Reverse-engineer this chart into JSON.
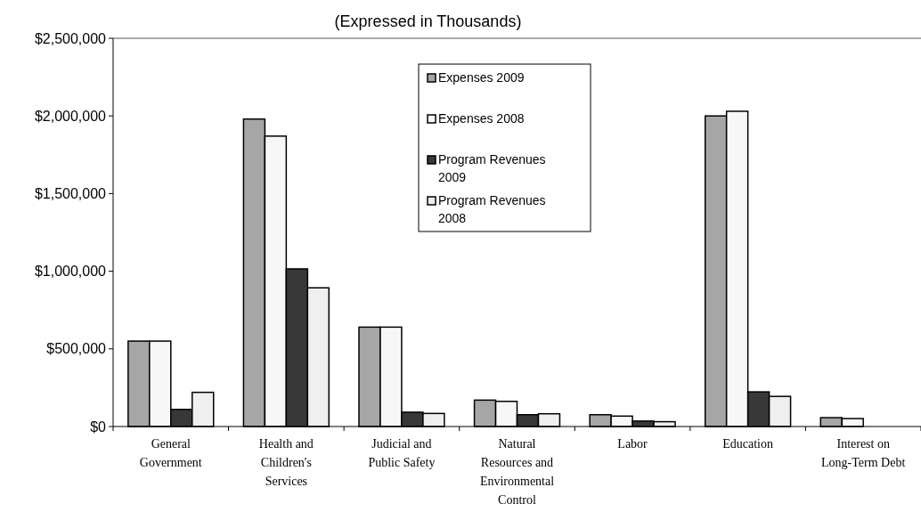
{
  "chart_data": {
    "type": "bar",
    "title": "(Expressed in Thousands)",
    "categories": [
      "General Government",
      "Health and Children's Services",
      "Judicial and Public Safety",
      "Natural Resources and Environmental Control",
      "Labor",
      "Education",
      "Interest on Long-Term Debt"
    ],
    "series": [
      {
        "name": "Expenses 2009",
        "color": "#a6a6a6",
        "values": [
          550000,
          1980000,
          640000,
          170000,
          76000,
          2000000,
          57000
        ]
      },
      {
        "name": "Expenses 2008",
        "color": "#f7f7f7",
        "values": [
          550000,
          1870000,
          640000,
          162000,
          67000,
          2030000,
          51000
        ]
      },
      {
        "name": "Program Revenues 2009",
        "color": "#383838",
        "values": [
          110000,
          1015000,
          92000,
          76000,
          35000,
          223000,
          null
        ]
      },
      {
        "name": "Program Revenues 2008",
        "color": "#efefef",
        "values": [
          220000,
          893000,
          84000,
          82000,
          31000,
          194000,
          null
        ]
      }
    ],
    "ylim": [
      0,
      2500000
    ],
    "yticks": [
      {
        "value": 0,
        "label": "$0"
      },
      {
        "value": 500000,
        "label": "$500,000"
      },
      {
        "value": 1000000,
        "label": "$1,000,000"
      },
      {
        "value": 1500000,
        "label": "$1,500,000"
      },
      {
        "value": 2000000,
        "label": "$2,000,000"
      },
      {
        "value": 2500000,
        "label": "$2,500,000"
      }
    ],
    "legend": "top",
    "grid": false
  }
}
